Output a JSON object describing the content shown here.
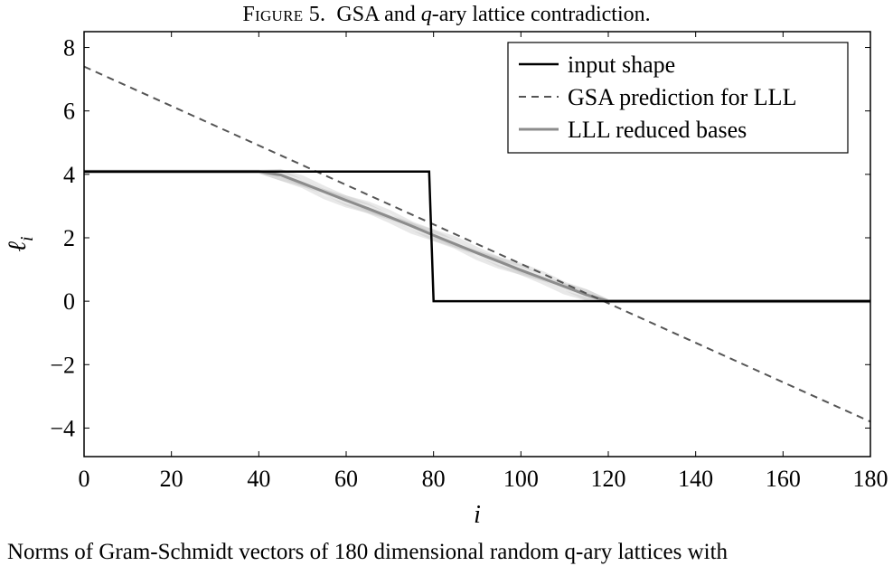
{
  "figure": {
    "label": "Figure 5.",
    "title_text": "GSA and q-ary lattice contradiction.",
    "caption": "Norms of Gram-Schmidt vectors of 180 dimensional random q-ary lattices with"
  },
  "colors": {
    "input_shape": "#000000",
    "gsa_prediction": "#555555",
    "lll_reduced": "#8c8c8c",
    "lll_samples": "#bdbdbd",
    "frame": "#000000"
  },
  "chart_data": {
    "type": "line",
    "title": "Figure 5. GSA and q-ary lattice contradiction.",
    "xlabel": "i",
    "ylabel": "ℓ_i",
    "xlim": [
      0,
      180
    ],
    "ylim": [
      -4.9,
      8.5
    ],
    "xticks": [
      0,
      20,
      40,
      60,
      80,
      100,
      120,
      140,
      160,
      180
    ],
    "yticks": [
      -4,
      -2,
      0,
      2,
      4,
      6,
      8
    ],
    "xtick_labels": [
      "0",
      "20",
      "40",
      "60",
      "80",
      "100",
      "120",
      "140",
      "160",
      "180"
    ],
    "ytick_labels": [
      "−4",
      "−2",
      "0",
      "2",
      "4",
      "6",
      "8"
    ],
    "grid": false,
    "legend_position": "top-right",
    "series": [
      {
        "name": "input shape",
        "style": "solid-black",
        "x": [
          0,
          79,
          80,
          180
        ],
        "y": [
          4.09,
          4.09,
          0,
          0
        ]
      },
      {
        "name": "GSA prediction for LLL",
        "style": "dashed-dark-gray",
        "x": [
          0,
          180
        ],
        "y": [
          7.4,
          -3.8
        ]
      },
      {
        "name": "LLL reduced bases",
        "style": "solid-gray",
        "x": [
          0,
          40,
          45,
          50,
          55,
          60,
          65,
          70,
          75,
          80,
          85,
          90,
          95,
          100,
          105,
          110,
          115,
          120,
          180
        ],
        "y": [
          4.09,
          4.09,
          3.98,
          3.72,
          3.45,
          3.18,
          2.92,
          2.65,
          2.37,
          2.08,
          1.8,
          1.52,
          1.25,
          0.98,
          0.72,
          0.46,
          0.2,
          0.0,
          0.0
        ]
      }
    ]
  }
}
